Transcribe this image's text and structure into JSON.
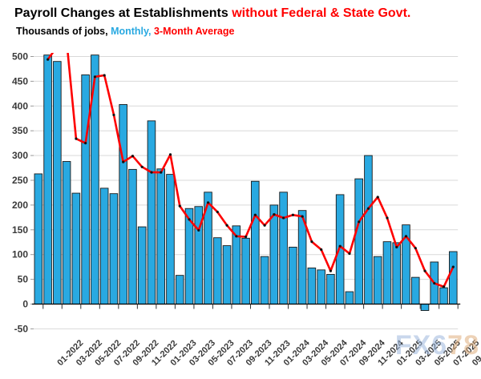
{
  "title": {
    "black": "Payroll Changes at Establishments ",
    "red": "without Federal & State Govt."
  },
  "subtitle": {
    "part1": "Thousands of jobs, ",
    "part2": "Monthly, ",
    "part3": "3-Month Average"
  },
  "watermark": {
    "part1": "FX6",
    "part2": "78"
  },
  "colors": {
    "bar_fill": "#29a9e1",
    "bar_stroke": "#1a1a1a",
    "line": "#fe0000",
    "marker": "#111111",
    "grid": "#d9d9d9",
    "zero_axis": "#000000",
    "axis_text": "#3a3a3a",
    "title_red": "#ff0000"
  },
  "chart_data": {
    "type": "bar",
    "title": "Payroll Changes at Establishments without Federal & State Govt.",
    "subtitle": "Thousands of jobs, Monthly, 3-Month Average",
    "xlabel": "",
    "ylabel": "Thousands of jobs",
    "ylim": [
      -50,
      500
    ],
    "ytick_step": 50,
    "grid": true,
    "legend_position": "subtitle-inline",
    "categories": [
      "01-2022",
      "02-2022",
      "03-2022",
      "04-2022",
      "05-2022",
      "06-2022",
      "07-2022",
      "08-2022",
      "09-2022",
      "10-2022",
      "11-2022",
      "12-2022",
      "01-2023",
      "02-2023",
      "03-2023",
      "04-2023",
      "05-2023",
      "06-2023",
      "07-2023",
      "08-2023",
      "09-2023",
      "10-2023",
      "11-2023",
      "12-2023",
      "01-2024",
      "02-2024",
      "03-2024",
      "04-2024",
      "05-2024",
      "06-2024",
      "07-2024",
      "08-2024",
      "09-2024",
      "10-2024",
      "11-2024",
      "12-2024",
      "01-2025",
      "02-2025",
      "03-2025",
      "04-2025",
      "05-2025",
      "06-2025",
      "07-2025",
      "08-2025",
      "09-2025"
    ],
    "x_tick_labels": [
      "01-2022",
      "03-2022",
      "05-2022",
      "07-2022",
      "09-2022",
      "11-2022",
      "01-2023",
      "03-2023",
      "05-2023",
      "07-2023",
      "09-2023",
      "11-2023",
      "01-2024",
      "03-2024",
      "05-2024",
      "07-2024",
      "09-2024",
      "11-2024",
      "01-2025",
      "03-2025",
      "05-2025",
      "07-2025",
      "09-2025"
    ],
    "series": [
      {
        "name": "Monthly",
        "type": "bar",
        "values": [
          263,
          503,
          490,
          288,
          224,
          463,
          503,
          234,
          223,
          403,
          272,
          156,
          370,
          273,
          262,
          58,
          193,
          197,
          226,
          134,
          118,
          158,
          133,
          248,
          96,
          200,
          226,
          115,
          189,
          73,
          69,
          60,
          221,
          25,
          253,
          300,
          96,
          126,
          124,
          160,
          54,
          -13,
          85,
          33,
          106
        ]
      },
      {
        "name": "3-Month Average",
        "type": "line",
        "values": [
          null,
          494,
          520,
          530,
          334,
          325,
          459,
          462,
          382,
          287,
          299,
          277,
          266,
          266,
          302,
          198,
          171,
          149,
          205,
          186,
          159,
          137,
          136,
          180,
          159,
          181,
          174,
          180,
          177,
          126,
          110,
          67,
          117,
          102,
          166,
          193,
          216,
          174,
          115,
          137,
          113,
          67,
          42,
          35,
          75
        ]
      }
    ]
  }
}
